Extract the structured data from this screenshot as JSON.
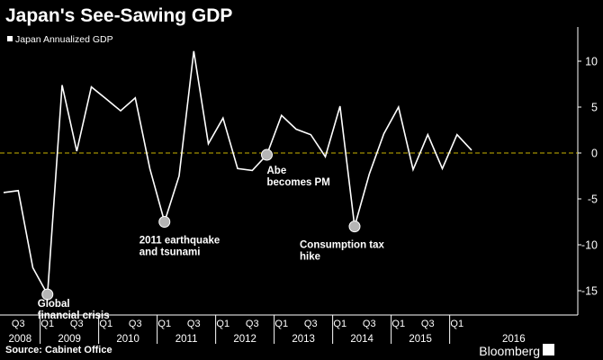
{
  "chart_data": {
    "type": "line",
    "title": "Japan's See-Sawing GDP",
    "legend": [
      {
        "name": "Japan Annualized GDP",
        "color": "#ffffff"
      }
    ],
    "legend_position": "top-left",
    "xlabel": "",
    "ylabel": "",
    "ylim": [
      -18,
      13
    ],
    "y_ticks": [
      10,
      5,
      0,
      -5,
      -10,
      -15
    ],
    "y_tick_labels": [
      "10",
      "5",
      "0",
      "-5",
      "-10",
      "-15"
    ],
    "y_axis_side": "right",
    "grid": false,
    "zero_line": {
      "value": 0,
      "style": "dashed",
      "color": "#c8b400"
    },
    "x": [
      "2008 Q2",
      "2008 Q3",
      "2008 Q4",
      "2009 Q1",
      "2009 Q2",
      "2009 Q3",
      "2009 Q4",
      "2010 Q1",
      "2010 Q2",
      "2010 Q3",
      "2010 Q4",
      "2011 Q1",
      "2011 Q2",
      "2011 Q3",
      "2011 Q4",
      "2012 Q1",
      "2012 Q2",
      "2012 Q3",
      "2012 Q4",
      "2013 Q1",
      "2013 Q2",
      "2013 Q3",
      "2013 Q4",
      "2014 Q1",
      "2014 Q2",
      "2014 Q3",
      "2014 Q4",
      "2015 Q1",
      "2015 Q2",
      "2015 Q3",
      "2015 Q4",
      "2016 Q1",
      "2016 Q2"
    ],
    "series": [
      {
        "name": "Japan Annualized GDP",
        "values": [
          -4.3,
          -4.1,
          -12.5,
          -15.4,
          7.4,
          0.2,
          7.2,
          5.9,
          4.6,
          6.0,
          -1.7,
          -7.5,
          -2.5,
          11.1,
          1.0,
          3.8,
          -1.7,
          -1.9,
          -0.2,
          4.1,
          2.6,
          2.0,
          -0.4,
          5.1,
          -8.0,
          -2.3,
          2.1,
          5.0,
          -1.8,
          2.0,
          -1.7,
          2.0,
          0.3
        ]
      }
    ],
    "x_quarter_labels": [
      {
        "at": "2008 Q3",
        "label": "Q3"
      },
      {
        "at": "2009 Q1",
        "label": "Q1"
      },
      {
        "at": "2009 Q3",
        "label": "Q3"
      },
      {
        "at": "2010 Q1",
        "label": "Q1"
      },
      {
        "at": "2010 Q3",
        "label": "Q3"
      },
      {
        "at": "2011 Q1",
        "label": "Q1"
      },
      {
        "at": "2011 Q3",
        "label": "Q3"
      },
      {
        "at": "2012 Q1",
        "label": "Q1"
      },
      {
        "at": "2012 Q3",
        "label": "Q3"
      },
      {
        "at": "2013 Q1",
        "label": "Q1"
      },
      {
        "at": "2013 Q3",
        "label": "Q3"
      },
      {
        "at": "2014 Q1",
        "label": "Q1"
      },
      {
        "at": "2014 Q3",
        "label": "Q3"
      },
      {
        "at": "2015 Q1",
        "label": "Q1"
      },
      {
        "at": "2015 Q3",
        "label": "Q3"
      },
      {
        "at": "2016 Q1",
        "label": "Q1"
      }
    ],
    "x_year_labels": [
      "2008",
      "2009",
      "2010",
      "2011",
      "2012",
      "2013",
      "2014",
      "2015",
      "2016"
    ],
    "annotations": [
      {
        "at": "2009 Q1",
        "value": -15.4,
        "lines": [
          "Global",
          "financial crisis"
        ]
      },
      {
        "at": "2011 Q1",
        "value": -7.5,
        "lines": [
          "2011 earthquake",
          "and tsunami"
        ]
      },
      {
        "at": "2012 Q4",
        "value": -0.2,
        "lines": [
          "Abe",
          "becomes PM"
        ]
      },
      {
        "at": "2014 Q2",
        "value": -8.0,
        "lines": [
          "Consumption tax",
          "hike"
        ]
      }
    ]
  },
  "source": "Source: Cabinet Office",
  "brand": "Bloomberg"
}
